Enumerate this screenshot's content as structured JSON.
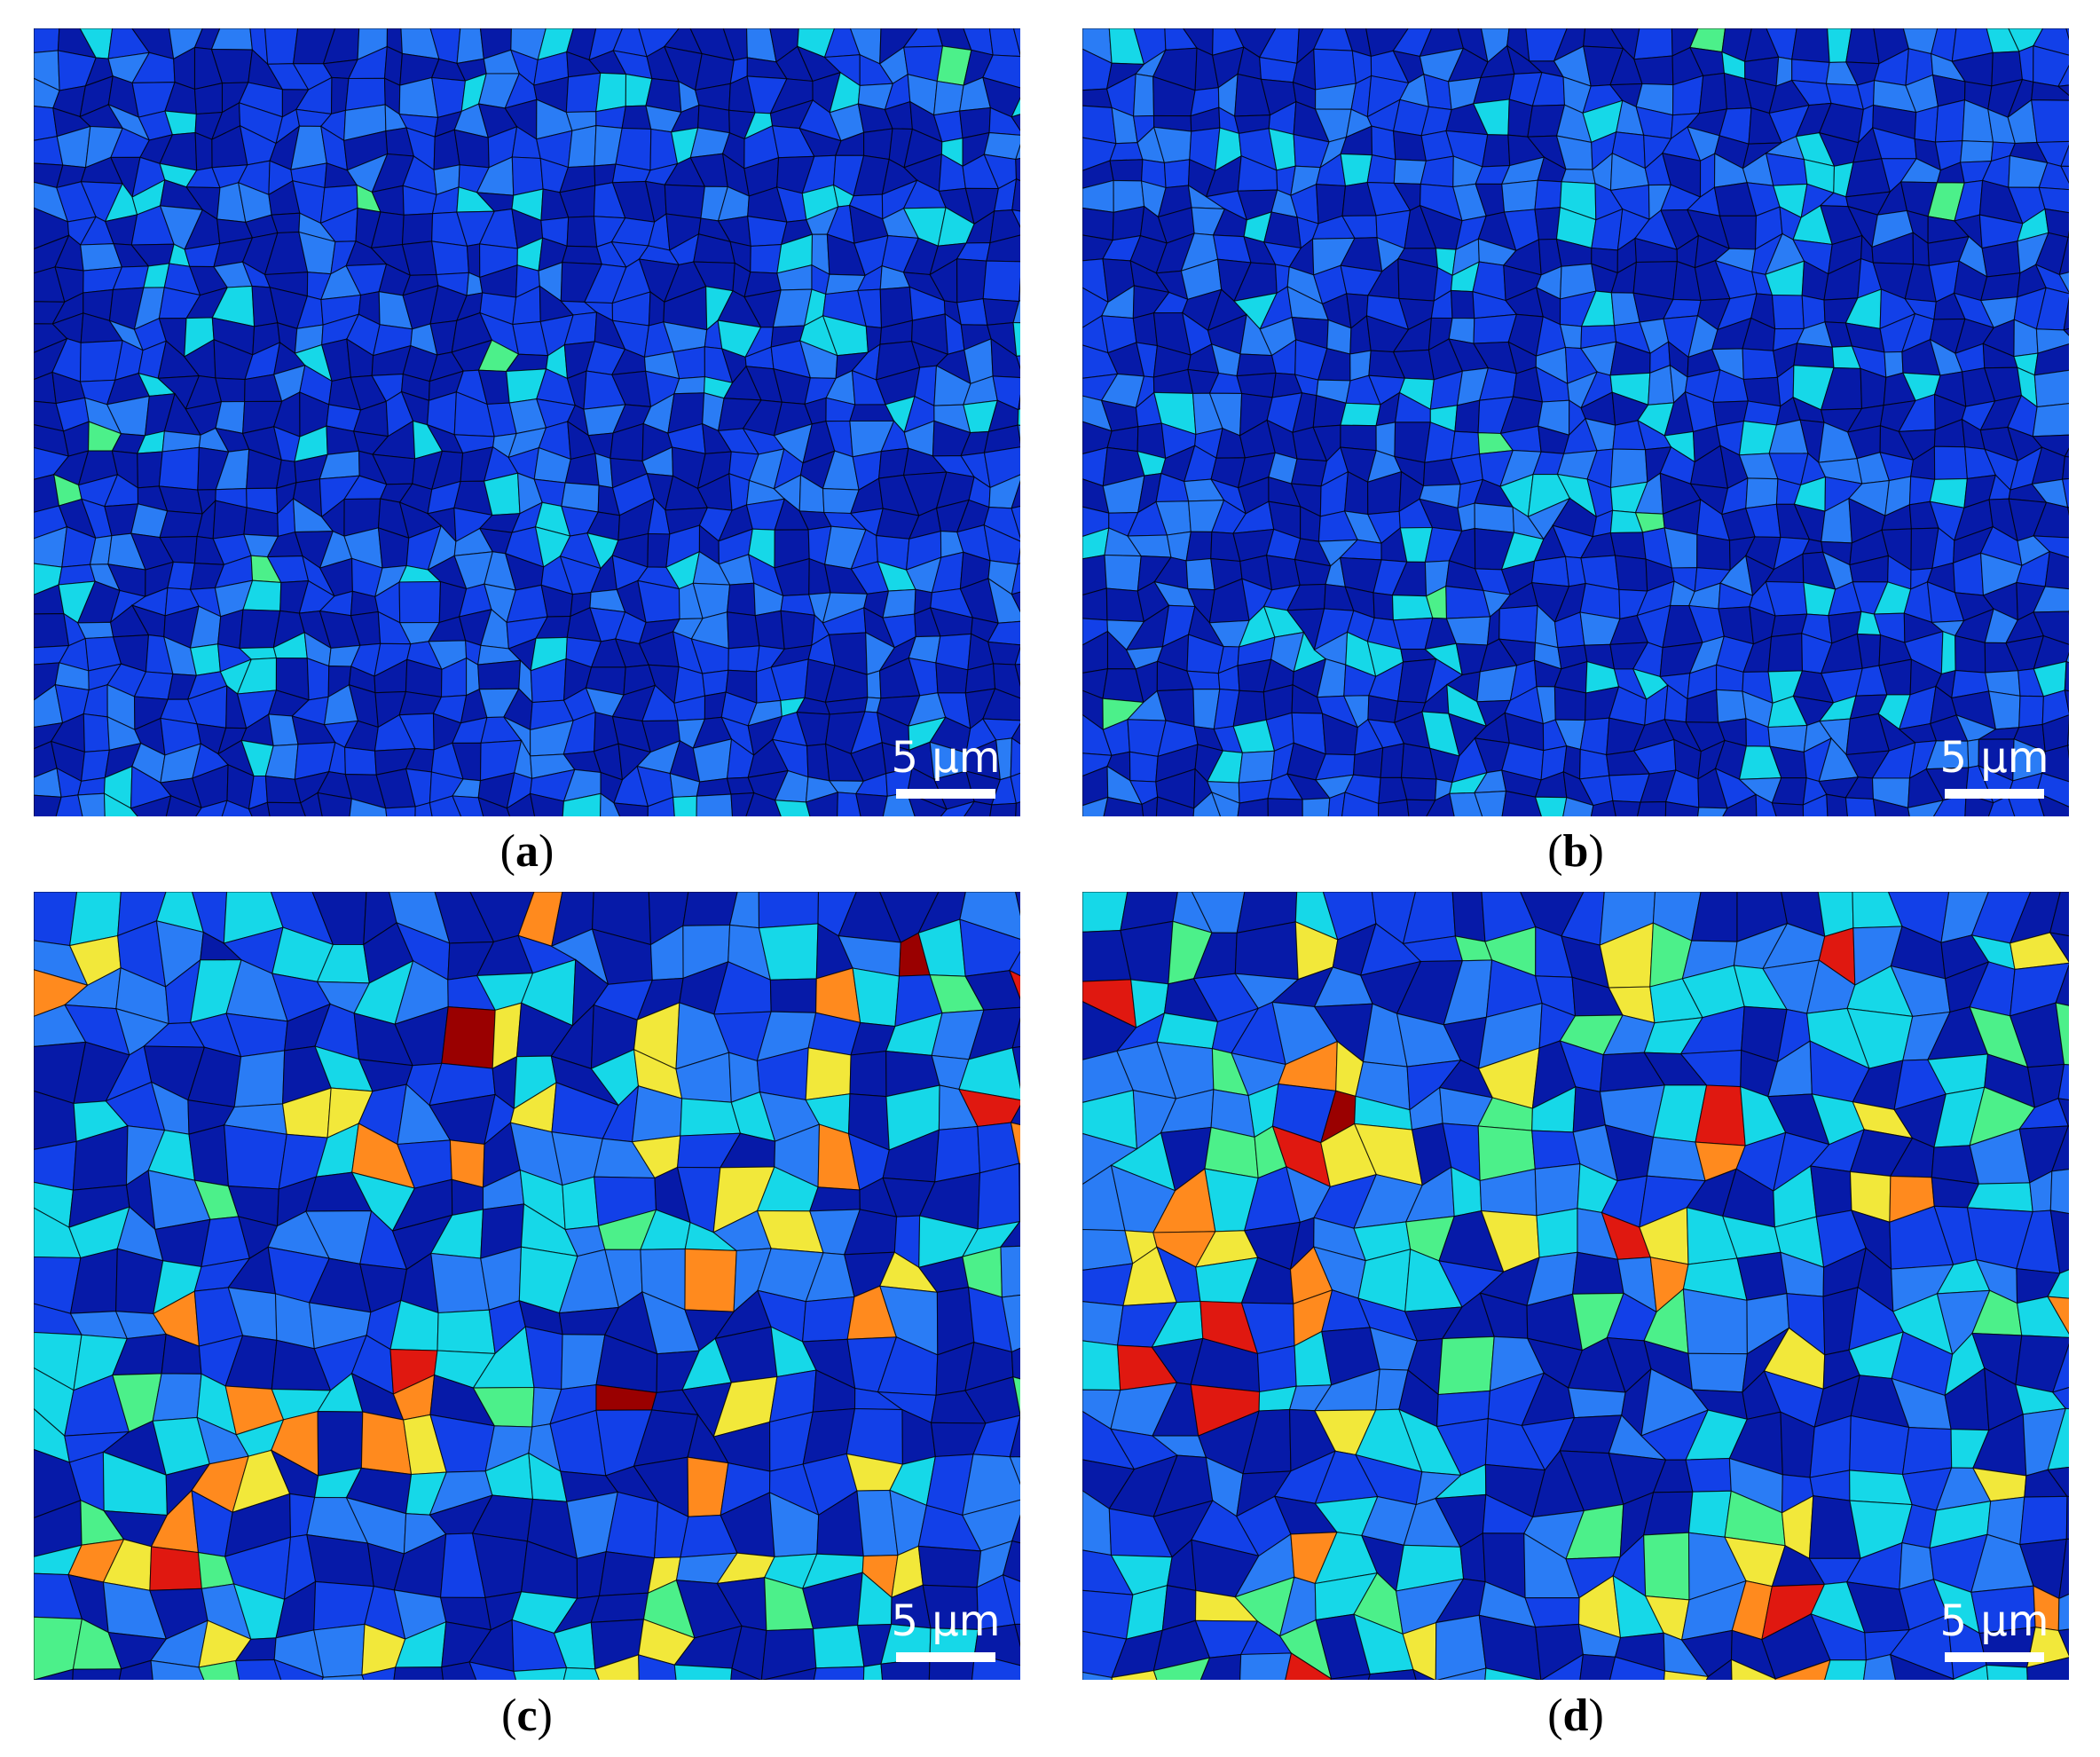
{
  "panels": [
    {
      "id": "a",
      "caption_letter": "a",
      "scalebar_label": "5 µm",
      "colormap_palette": "mostly-blue",
      "base_color": "#0a1fbf"
    },
    {
      "id": "b",
      "caption_letter": "b",
      "scalebar_label": "5 µm",
      "colormap_palette": "mostly-blue",
      "base_color": "#0a1fbf"
    },
    {
      "id": "c",
      "caption_letter": "c",
      "scalebar_label": "5 µm",
      "colormap_palette": "blue-cyan-with-yellow-red",
      "base_color": "#0a2bd0"
    },
    {
      "id": "d",
      "caption_letter": "d",
      "scalebar_label": "5 µm",
      "colormap_palette": "blue-cyan-with-yellow-red",
      "base_color": "#0a2bd0"
    }
  ],
  "colors": {
    "dark_blue": "#061aa8",
    "blue": "#1240e8",
    "light_blue": "#2a7cf5",
    "cyan": "#16d8e8",
    "green": "#4cf08a",
    "yellow": "#f2e83a",
    "orange": "#ff8a1e",
    "red": "#e01810",
    "dark_red": "#9a0000",
    "grain_boundary": "#000000"
  }
}
